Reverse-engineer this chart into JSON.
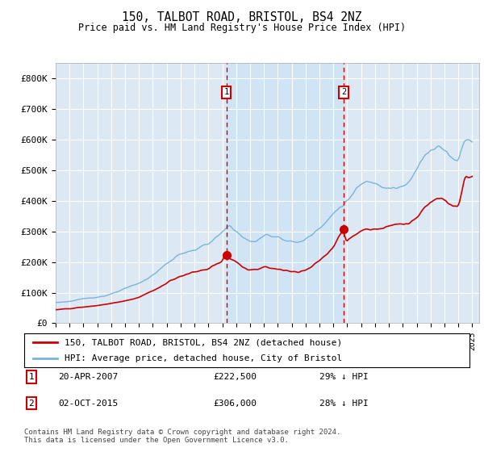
{
  "title": "150, TALBOT ROAD, BRISTOL, BS4 2NZ",
  "subtitle": "Price paid vs. HM Land Registry's House Price Index (HPI)",
  "hpi_color": "#7ab4d8",
  "price_color": "#cc0000",
  "annotation_color": "#cc0000",
  "shade_color": "#d0e4f5",
  "background_color": "#dce9f5",
  "plot_bg": "#ffffff",
  "grid_color": "#ffffff",
  "ylim": [
    0,
    850000
  ],
  "yticks": [
    0,
    100000,
    200000,
    300000,
    400000,
    500000,
    600000,
    700000,
    800000
  ],
  "xlim_start": 1995,
  "xlim_end": 2025,
  "legend_entries": [
    "150, TALBOT ROAD, BRISTOL, BS4 2NZ (detached house)",
    "HPI: Average price, detached house, City of Bristol"
  ],
  "annotations": [
    {
      "label": "1",
      "date_str": "20-APR-2007",
      "price_str": "£222,500",
      "pct_str": "29% ↓ HPI",
      "x_year": 2007.3,
      "y_val": 222500
    },
    {
      "label": "2",
      "date_str": "02-OCT-2015",
      "price_str": "£306,000",
      "pct_str": "28% ↓ HPI",
      "x_year": 2015.75,
      "y_val": 306000
    }
  ],
  "footer": "Contains HM Land Registry data © Crown copyright and database right 2024.\nThis data is licensed under the Open Government Licence v3.0."
}
